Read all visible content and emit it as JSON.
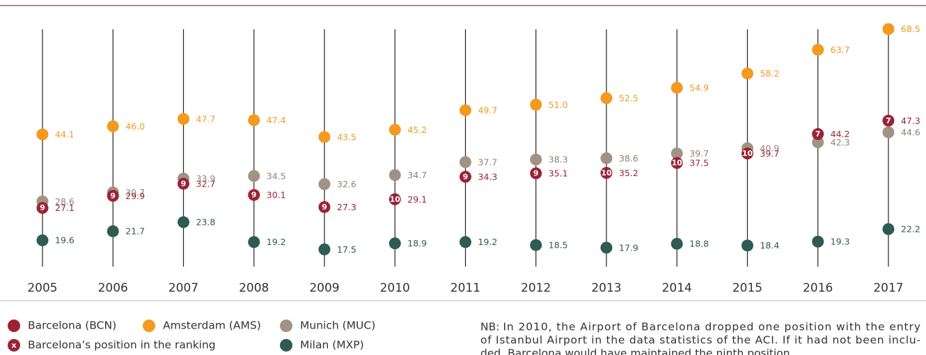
{
  "chart_data": {
    "type": "dot",
    "categories": [
      "2005",
      "2006",
      "2007",
      "2008",
      "2009",
      "2010",
      "2011",
      "2012",
      "2013",
      "2014",
      "2015",
      "2016",
      "2017"
    ],
    "series": [
      {
        "name": "Barcelona (BCN)",
        "color": "#9b2335",
        "values": [
          27.1,
          29.9,
          32.7,
          30.1,
          27.3,
          29.1,
          34.3,
          35.1,
          35.2,
          37.5,
          39.7,
          44.2,
          47.3
        ],
        "positions": [
          9,
          9,
          9,
          9,
          9,
          10,
          9,
          9,
          10,
          10,
          10,
          7,
          7
        ]
      },
      {
        "name": "Amsterdam (AMS)",
        "color": "#f39a1f",
        "values": [
          44.1,
          46.0,
          47.7,
          47.4,
          43.5,
          45.2,
          49.7,
          51.0,
          52.5,
          54.9,
          58.2,
          63.7,
          68.5
        ],
        "value_labels": [
          "44.1",
          "46.0",
          "47.7",
          "47.4",
          "43.5",
          "45.2",
          "49.7",
          "51.0",
          "52.5",
          "54.9",
          "58.2",
          "63.7",
          "68.5"
        ]
      },
      {
        "name": "Munich (MUC)",
        "color": "#a09383",
        "values": [
          28.6,
          30.7,
          33.9,
          34.5,
          32.6,
          34.7,
          37.7,
          38.3,
          38.6,
          39.7,
          40.9,
          42.3,
          44.6
        ]
      },
      {
        "name": "Milan (MXP)",
        "color": "#2e5b54",
        "values": [
          19.6,
          21.7,
          23.8,
          19.2,
          17.5,
          18.9,
          19.2,
          18.5,
          17.9,
          18.8,
          18.4,
          19.3,
          22.2
        ]
      }
    ],
    "ylim": [
      14,
      72
    ],
    "position_symbol": "x",
    "position_label": "Barcelona’s position in the ranking",
    "note_label": "NB:",
    "note_lines": [
      "In 2010, the Airport of Barcelona dropped one position with the entry",
      "of Istanbul Airport in the data statistics of the ACI. If it had not been inclu-",
      "ded, Barcelona would have maintained the ninth position."
    ]
  }
}
